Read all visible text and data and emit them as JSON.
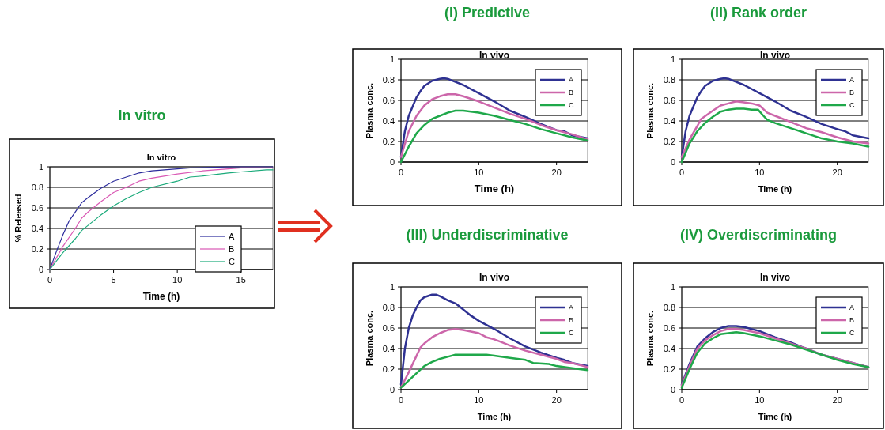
{
  "chart_data": [
    {
      "type": "line",
      "title": "In vitro",
      "subtitle": "In vitro",
      "xlabel": "Time (h)",
      "ylabel": "% Released",
      "xlim": [
        0,
        17.5
      ],
      "ylim": [
        0,
        1
      ],
      "xticks": [
        0,
        5,
        10,
        15
      ],
      "yticks": [
        0,
        0.2,
        0.4,
        0.6,
        0.8,
        1
      ],
      "grid": "y",
      "legend": "bottom right",
      "series": [
        {
          "name": "A",
          "color": "#2b2b9c",
          "x": [
            0,
            0.5,
            1,
            1.5,
            2,
            2.5,
            3,
            4,
            5,
            6,
            7,
            8,
            10,
            11,
            13,
            14,
            17.5
          ],
          "values": [
            0,
            0.17,
            0.33,
            0.47,
            0.56,
            0.65,
            0.7,
            0.79,
            0.86,
            0.9,
            0.94,
            0.96,
            0.98,
            0.99,
            0.995,
            1,
            1
          ]
        },
        {
          "name": "B",
          "color": "#d958b4",
          "x": [
            0,
            1,
            2,
            2.5,
            3,
            4,
            5,
            6,
            7,
            8,
            10,
            12,
            14,
            15,
            17.5
          ],
          "values": [
            0,
            0.22,
            0.4,
            0.5,
            0.56,
            0.66,
            0.75,
            0.8,
            0.86,
            0.89,
            0.93,
            0.96,
            0.98,
            0.99,
            0.99
          ]
        },
        {
          "name": "C",
          "color": "#1aaa7a",
          "x": [
            0,
            1,
            2,
            2.5,
            3,
            4,
            5,
            6,
            7,
            8,
            10,
            11,
            12,
            14,
            15,
            17,
            17.5
          ],
          "values": [
            0,
            0.16,
            0.3,
            0.38,
            0.43,
            0.53,
            0.62,
            0.69,
            0.75,
            0.8,
            0.86,
            0.9,
            0.91,
            0.94,
            0.95,
            0.97,
            0.97
          ]
        }
      ]
    },
    {
      "type": "line",
      "title": "(I) Predictive",
      "subtitle": "In vivo",
      "xlabel": "Time (h)",
      "ylabel": "Plasma conc.",
      "xlim": [
        0,
        24
      ],
      "ylim": [
        0,
        1
      ],
      "xticks": [
        0,
        10,
        20
      ],
      "yticks": [
        0,
        0.2,
        0.4,
        0.6,
        0.8,
        1
      ],
      "grid": "y",
      "legend": "top right",
      "series": [
        {
          "name": "A",
          "color": "#2e3192",
          "x": [
            0,
            0.5,
            1,
            2,
            2.5,
            3,
            4,
            5,
            5.5,
            6,
            7,
            8,
            10,
            12,
            14,
            16,
            18,
            20,
            21,
            22,
            24
          ],
          "values": [
            0.05,
            0.3,
            0.45,
            0.63,
            0.69,
            0.74,
            0.79,
            0.81,
            0.815,
            0.81,
            0.78,
            0.75,
            0.67,
            0.59,
            0.5,
            0.44,
            0.37,
            0.31,
            0.3,
            0.26,
            0.23
          ]
        },
        {
          "name": "B",
          "color": "#cc66aa",
          "x": [
            0,
            1,
            2,
            3,
            4,
            5,
            6,
            7,
            8,
            10,
            12,
            14,
            16,
            18,
            20,
            22,
            24
          ],
          "values": [
            0.05,
            0.3,
            0.45,
            0.55,
            0.61,
            0.64,
            0.66,
            0.66,
            0.64,
            0.59,
            0.53,
            0.47,
            0.42,
            0.36,
            0.31,
            0.27,
            0.22
          ]
        },
        {
          "name": "C",
          "color": "#1fa84a",
          "x": [
            0,
            1,
            2,
            3,
            4,
            5,
            6,
            7,
            8,
            10,
            12,
            14,
            16,
            18,
            20,
            22,
            24
          ],
          "values": [
            0,
            0.15,
            0.28,
            0.36,
            0.42,
            0.45,
            0.48,
            0.5,
            0.5,
            0.48,
            0.45,
            0.41,
            0.37,
            0.32,
            0.28,
            0.24,
            0.21
          ]
        }
      ]
    },
    {
      "type": "line",
      "title": "(II) Rank order",
      "subtitle": "In vivo",
      "xlabel": "Time (h)",
      "ylabel": "Plasma conc.",
      "xlim": [
        0,
        24
      ],
      "ylim": [
        0,
        1
      ],
      "xticks": [
        0,
        10,
        20
      ],
      "yticks": [
        0,
        0.2,
        0.4,
        0.6,
        0.8,
        1
      ],
      "grid": "y",
      "legend": "top right",
      "series": [
        {
          "name": "A",
          "color": "#2e3192",
          "x": [
            0,
            0.5,
            1,
            2,
            2.5,
            3,
            4,
            5,
            5.5,
            6,
            7,
            8,
            10,
            12,
            14,
            16,
            18,
            20,
            21,
            22,
            24
          ],
          "values": [
            0.05,
            0.3,
            0.45,
            0.63,
            0.69,
            0.74,
            0.79,
            0.81,
            0.815,
            0.81,
            0.78,
            0.75,
            0.67,
            0.59,
            0.5,
            0.44,
            0.37,
            0.32,
            0.3,
            0.26,
            0.23
          ]
        },
        {
          "name": "B",
          "color": "#cc66aa",
          "x": [
            0,
            1,
            2,
            2.5,
            4,
            5,
            6,
            7,
            8,
            9,
            10,
            11,
            12,
            14,
            16,
            18,
            20,
            22,
            24
          ],
          "values": [
            0.05,
            0.22,
            0.35,
            0.42,
            0.5,
            0.55,
            0.57,
            0.59,
            0.58,
            0.57,
            0.55,
            0.48,
            0.45,
            0.39,
            0.33,
            0.29,
            0.24,
            0.2,
            0.18
          ]
        },
        {
          "name": "C",
          "color": "#1fa84a",
          "x": [
            0,
            1,
            2,
            3,
            4,
            5,
            6,
            7,
            8,
            9,
            9.8,
            10.5,
            11,
            12,
            14,
            16,
            18,
            20,
            22,
            24
          ],
          "values": [
            0,
            0.18,
            0.3,
            0.38,
            0.44,
            0.49,
            0.51,
            0.52,
            0.52,
            0.51,
            0.51,
            0.45,
            0.41,
            0.38,
            0.33,
            0.28,
            0.23,
            0.2,
            0.18,
            0.15
          ]
        }
      ]
    },
    {
      "type": "line",
      "title": "(III) Underdiscriminative",
      "subtitle": "In vivo",
      "xlabel": "Time (h)",
      "ylabel": "Plasma conc.",
      "xlim": [
        0,
        24
      ],
      "ylim": [
        0,
        1
      ],
      "xticks": [
        0,
        10,
        20
      ],
      "yticks": [
        0,
        0.2,
        0.4,
        0.6,
        0.8,
        1
      ],
      "grid": "y",
      "legend": "top right",
      "series": [
        {
          "name": "A",
          "color": "#2e3192",
          "x": [
            0,
            0.5,
            1,
            1.5,
            2,
            2.5,
            3,
            4,
            4.5,
            5,
            6,
            7,
            8,
            9,
            10,
            12,
            14,
            16,
            18,
            20,
            21,
            22,
            24
          ],
          "values": [
            0.05,
            0.4,
            0.6,
            0.72,
            0.8,
            0.87,
            0.9,
            0.925,
            0.925,
            0.91,
            0.87,
            0.84,
            0.78,
            0.72,
            0.67,
            0.59,
            0.5,
            0.42,
            0.36,
            0.31,
            0.29,
            0.26,
            0.23
          ]
        },
        {
          "name": "B",
          "color": "#cc66aa",
          "x": [
            0,
            1,
            2,
            2.5,
            3,
            4,
            5,
            6,
            7,
            8,
            10,
            11,
            12,
            13,
            14,
            16,
            18,
            20,
            21,
            22,
            24
          ],
          "values": [
            0.02,
            0.17,
            0.33,
            0.41,
            0.45,
            0.51,
            0.55,
            0.58,
            0.59,
            0.58,
            0.55,
            0.51,
            0.49,
            0.46,
            0.43,
            0.38,
            0.34,
            0.3,
            0.27,
            0.26,
            0.22
          ]
        },
        {
          "name": "C",
          "color": "#1fa84a",
          "x": [
            0,
            1,
            2,
            3,
            4,
            5,
            6,
            7,
            8,
            11,
            12,
            14,
            16,
            17,
            19,
            20,
            22,
            24
          ],
          "values": [
            0.02,
            0.09,
            0.16,
            0.23,
            0.27,
            0.3,
            0.32,
            0.34,
            0.34,
            0.34,
            0.33,
            0.31,
            0.29,
            0.26,
            0.25,
            0.23,
            0.21,
            0.19
          ]
        }
      ]
    },
    {
      "type": "line",
      "title": "(IV) Overdiscriminating",
      "subtitle": "In vivo",
      "xlabel": "Time (h)",
      "ylabel": "Plasma conc.",
      "xlim": [
        0,
        24
      ],
      "ylim": [
        0,
        1
      ],
      "xticks": [
        0,
        10,
        20
      ],
      "yticks": [
        0,
        0.2,
        0.4,
        0.6,
        0.8,
        1
      ],
      "grid": "y",
      "legend": "top right",
      "series": [
        {
          "name": "A",
          "color": "#2e3192",
          "x": [
            0,
            1,
            2,
            3,
            4,
            5,
            6,
            7,
            8,
            10,
            12,
            14,
            16,
            18,
            20,
            22,
            24
          ],
          "values": [
            0.05,
            0.25,
            0.42,
            0.5,
            0.56,
            0.6,
            0.62,
            0.62,
            0.61,
            0.57,
            0.51,
            0.46,
            0.4,
            0.34,
            0.3,
            0.26,
            0.22
          ]
        },
        {
          "name": "B",
          "color": "#cc66aa",
          "x": [
            0,
            1,
            2,
            3,
            4,
            5,
            6,
            7,
            8,
            10,
            12,
            14,
            16,
            18,
            20,
            22,
            24
          ],
          "values": [
            0.04,
            0.23,
            0.4,
            0.48,
            0.53,
            0.57,
            0.59,
            0.59,
            0.58,
            0.55,
            0.5,
            0.45,
            0.4,
            0.34,
            0.3,
            0.26,
            0.22
          ]
        },
        {
          "name": "C",
          "color": "#1fa84a",
          "x": [
            0,
            1,
            2,
            3,
            4,
            5,
            6,
            7,
            8,
            10,
            12,
            14,
            16,
            18,
            20,
            22,
            24
          ],
          "values": [
            0.02,
            0.2,
            0.36,
            0.45,
            0.5,
            0.54,
            0.55,
            0.56,
            0.55,
            0.52,
            0.48,
            0.44,
            0.39,
            0.34,
            0.29,
            0.25,
            0.22
          ]
        }
      ]
    }
  ]
}
